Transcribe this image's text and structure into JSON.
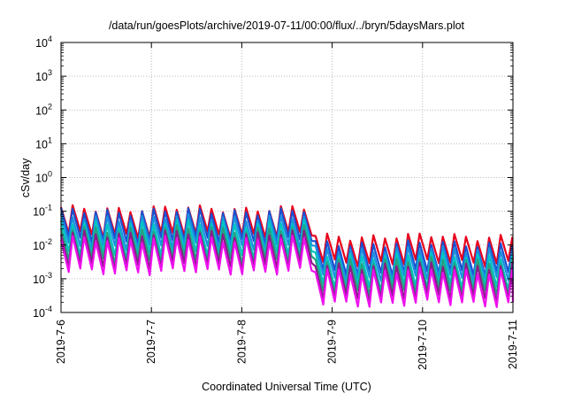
{
  "chart_data": {
    "type": "line",
    "title": "/data/run/goesPlots/archive/2019-07-11/00:00/flux/../bryn/5daysMars.plot",
    "xlabel": "Coordinated Universal Time (UTC)",
    "ylabel": "cSv/day",
    "x_tick_labels": [
      "2019-7-6",
      "2019-7-7",
      "2019-7-8",
      "2019-7-9",
      "2019-7-10",
      "2019-7-11"
    ],
    "x_range": [
      "2019-7-6",
      "2019-7-11"
    ],
    "y_tick_exponents": [
      -4,
      -3,
      -2,
      -1,
      0,
      1,
      2,
      3,
      4
    ],
    "y_tick_base": "10",
    "ylim": [
      0.0001,
      10000
    ],
    "yscale": "log",
    "grid": true,
    "grid_style": "dotted",
    "sawtooth_period_days": 0.128,
    "series": [
      {
        "color": "#e8001c",
        "upper_level": [
          0.12,
          0.018
        ],
        "drop_days": 0.085,
        "lower_ratio": 0.17
      },
      {
        "color": "#1a50d0",
        "upper_level": [
          0.1,
          0.011
        ],
        "drop_days": 0.085,
        "lower_ratio": 0.14
      },
      {
        "color": "#1c8fe0",
        "upper_level": [
          0.065,
          0.0075
        ],
        "drop_days": 0.085,
        "lower_ratio": 0.14
      },
      {
        "color": "#00c4c4",
        "upper_level": [
          0.045,
          0.005
        ],
        "drop_days": 0.085,
        "lower_ratio": 0.12
      },
      {
        "color": "#26a080",
        "upper_level": [
          0.03,
          0.0035
        ],
        "drop_days": 0.085,
        "lower_ratio": 0.12
      },
      {
        "color": "#8a1c8a",
        "upper_level": [
          0.022,
          0.0025
        ],
        "drop_days": 0.085,
        "lower_ratio": 0.11
      },
      {
        "color": "#ee10ee",
        "upper_level": [
          0.015,
          0.0017
        ],
        "drop_days": 0.085,
        "lower_ratio": 0.11
      }
    ],
    "level_shift_day": 2.72
  }
}
